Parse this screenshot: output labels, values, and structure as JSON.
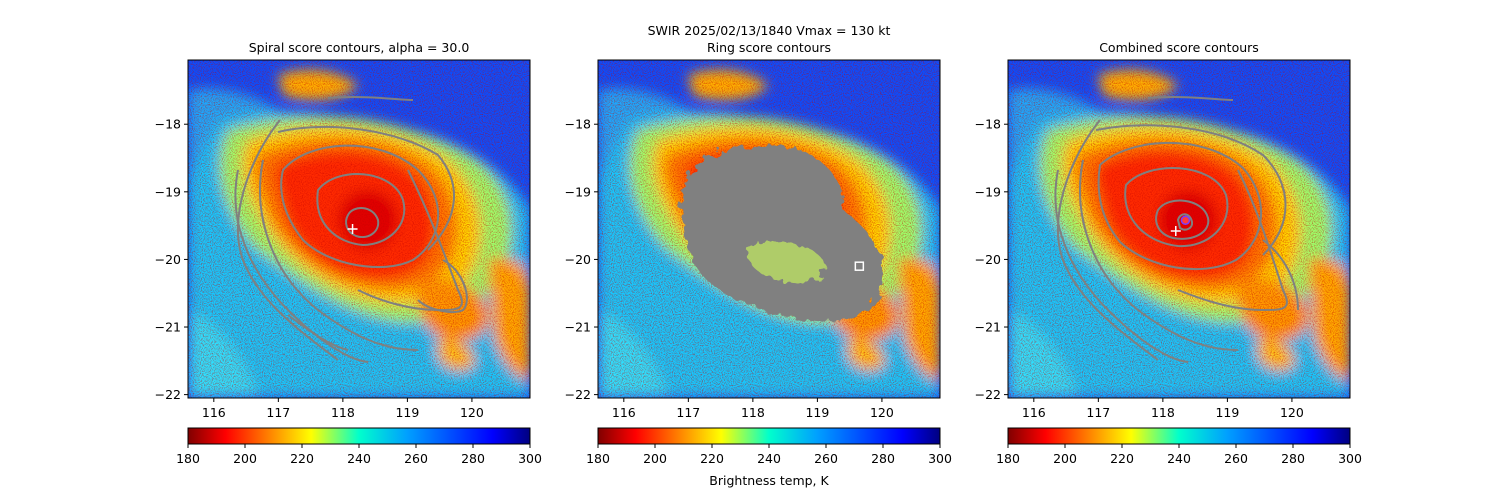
{
  "figure": {
    "suptitle_line1": "SWIR  2025/02/13/1840    Vmax = 130 kt",
    "colorbar_label": "Brightness temp, K"
  },
  "colors": {
    "contour": "#808080",
    "marker_center": "#ffffff",
    "marker_best": "#ff3b3b",
    "marker_circle": "#7a3cff"
  },
  "colormap": "jet_reversed",
  "chart_data": [
    {
      "type": "heatmap",
      "title": "Spiral score contours, alpha = 30.0",
      "xlim": [
        115.6,
        120.9
      ],
      "ylim": [
        -22.05,
        -17.05
      ],
      "xticks": [
        116,
        117,
        118,
        119,
        120
      ],
      "yticks": [
        -18,
        -19,
        -20,
        -21,
        -22
      ],
      "xticklabels": [
        "116",
        "117",
        "118",
        "119",
        "120"
      ],
      "yticklabels": [
        "−18",
        "−19",
        "−20",
        "−21",
        "−22"
      ],
      "overlay": "spiral score contours",
      "center_marker": [
        118.15,
        -19.55
      ],
      "colorbar": {
        "range": [
          180,
          300
        ],
        "ticks": [
          "180",
          "200",
          "220",
          "240",
          "260",
          "280",
          "300"
        ]
      }
    },
    {
      "type": "heatmap",
      "title": "Ring score contours",
      "xlim": [
        115.6,
        120.9
      ],
      "ylim": [
        -22.05,
        -17.05
      ],
      "xticks": [
        116,
        117,
        118,
        119,
        120
      ],
      "yticks": [
        -18,
        -19,
        -20,
        -21,
        -22
      ],
      "xticklabels": [
        "116",
        "117",
        "118",
        "119",
        "120"
      ],
      "yticklabels": [
        "−18",
        "−19",
        "−20",
        "−21",
        "−22"
      ],
      "overlay": "ring score contours",
      "square_marker": [
        119.65,
        -20.1
      ],
      "colorbar": {
        "range": [
          180,
          300
        ],
        "ticks": [
          "180",
          "200",
          "220",
          "240",
          "260",
          "280",
          "300"
        ]
      }
    },
    {
      "type": "heatmap",
      "title": "Combined score contours",
      "xlim": [
        115.6,
        120.9
      ],
      "ylim": [
        -22.05,
        -17.05
      ],
      "xticks": [
        116,
        117,
        118,
        119,
        120
      ],
      "yticks": [
        -18,
        -19,
        -20,
        -21,
        -22
      ],
      "xticklabels": [
        "116",
        "117",
        "118",
        "119",
        "120"
      ],
      "yticklabels": [
        "−18",
        "−19",
        "−20",
        "−21",
        "−22"
      ],
      "overlay": "combined score contours",
      "center_marker": [
        118.2,
        -19.58
      ],
      "best_marker": [
        118.35,
        -19.42
      ],
      "colorbar": {
        "range": [
          180,
          300
        ],
        "ticks": [
          "180",
          "200",
          "220",
          "240",
          "260",
          "280",
          "300"
        ]
      }
    }
  ]
}
